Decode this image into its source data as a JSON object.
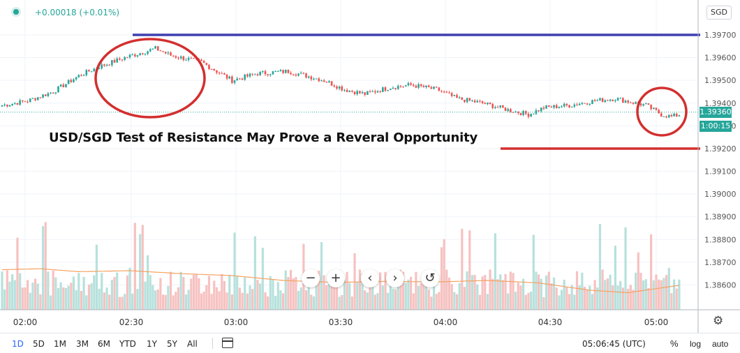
{
  "header": {
    "change": "+0.00018 (+0.01%)",
    "currency": "SGD"
  },
  "annotation": {
    "headline": "USD/SGD Test of Resistance May Prove a Reveral Opportunity"
  },
  "price_axis": {
    "ticks": [
      "1.39700",
      "1.39600",
      "1.39500",
      "1.39400",
      "1.39300",
      "1.39200",
      "1.39100",
      "1.39000",
      "1.38900",
      "1.38800",
      "1.38700",
      "1.38600"
    ],
    "last_price": "1.39360",
    "countdown": "1:00:15"
  },
  "time_axis": {
    "ticks": [
      "02:00",
      "02:30",
      "03:00",
      "03:30",
      "04:00",
      "04:30",
      "05:00"
    ]
  },
  "toolbar": {
    "ranges": [
      "1D",
      "5D",
      "1M",
      "3M",
      "6M",
      "YTD",
      "1Y",
      "5Y",
      "All"
    ],
    "active_range": "1D",
    "clock": "05:06:45 (UTC)",
    "percent_label": "%",
    "log_label": "log",
    "auto_label": "auto"
  },
  "zoom_controls": {
    "minus": "−",
    "plus": "+",
    "left": "‹",
    "right": "›",
    "reset": "↺"
  },
  "colors": {
    "up": "#26a69a",
    "down": "#ef5350",
    "resistance": "#3f3fb0",
    "support": "#d32f2f",
    "circle": "#d32f2f",
    "volume_ma": "#f4a261"
  },
  "chart_data": {
    "type": "candlestick",
    "symbol": "USD/SGD",
    "y_range": [
      1.3854,
      1.3983
    ],
    "resistance_level": 1.397,
    "support_level": 1.392,
    "close_anchors": [
      [
        0,
        1.3939
      ],
      [
        10,
        1.3941
      ],
      [
        20,
        1.3945
      ],
      [
        30,
        1.3952
      ],
      [
        38,
        1.3956
      ],
      [
        48,
        1.396
      ],
      [
        60,
        1.3964
      ],
      [
        66,
        1.3961
      ],
      [
        78,
        1.3958
      ],
      [
        90,
        1.395
      ],
      [
        100,
        1.3953
      ],
      [
        112,
        1.3954
      ],
      [
        126,
        1.395
      ],
      [
        134,
        1.3946
      ],
      [
        142,
        1.3944
      ],
      [
        152,
        1.3947
      ],
      [
        160,
        1.3948
      ],
      [
        170,
        1.3946
      ],
      [
        178,
        1.3942
      ],
      [
        188,
        1.394
      ],
      [
        198,
        1.3937
      ],
      [
        206,
        1.3935
      ],
      [
        212,
        1.3938
      ],
      [
        222,
        1.3939
      ],
      [
        232,
        1.3941
      ],
      [
        240,
        1.3942
      ],
      [
        252,
        1.3939
      ],
      [
        258,
        1.3935
      ],
      [
        262,
        1.3934
      ],
      [
        265,
        1.3935
      ]
    ],
    "volume_ma_anchors": [
      [
        0,
        0.82
      ],
      [
        15,
        0.84
      ],
      [
        30,
        0.78
      ],
      [
        50,
        0.8
      ],
      [
        70,
        0.74
      ],
      [
        90,
        0.7
      ],
      [
        110,
        0.6
      ],
      [
        130,
        0.56
      ],
      [
        150,
        0.58
      ],
      [
        170,
        0.57
      ],
      [
        190,
        0.6
      ],
      [
        210,
        0.55
      ],
      [
        230,
        0.4
      ],
      [
        245,
        0.35
      ],
      [
        265,
        0.5
      ]
    ],
    "start_time": "01:48",
    "end_time": "05:06",
    "interval": "1m"
  }
}
